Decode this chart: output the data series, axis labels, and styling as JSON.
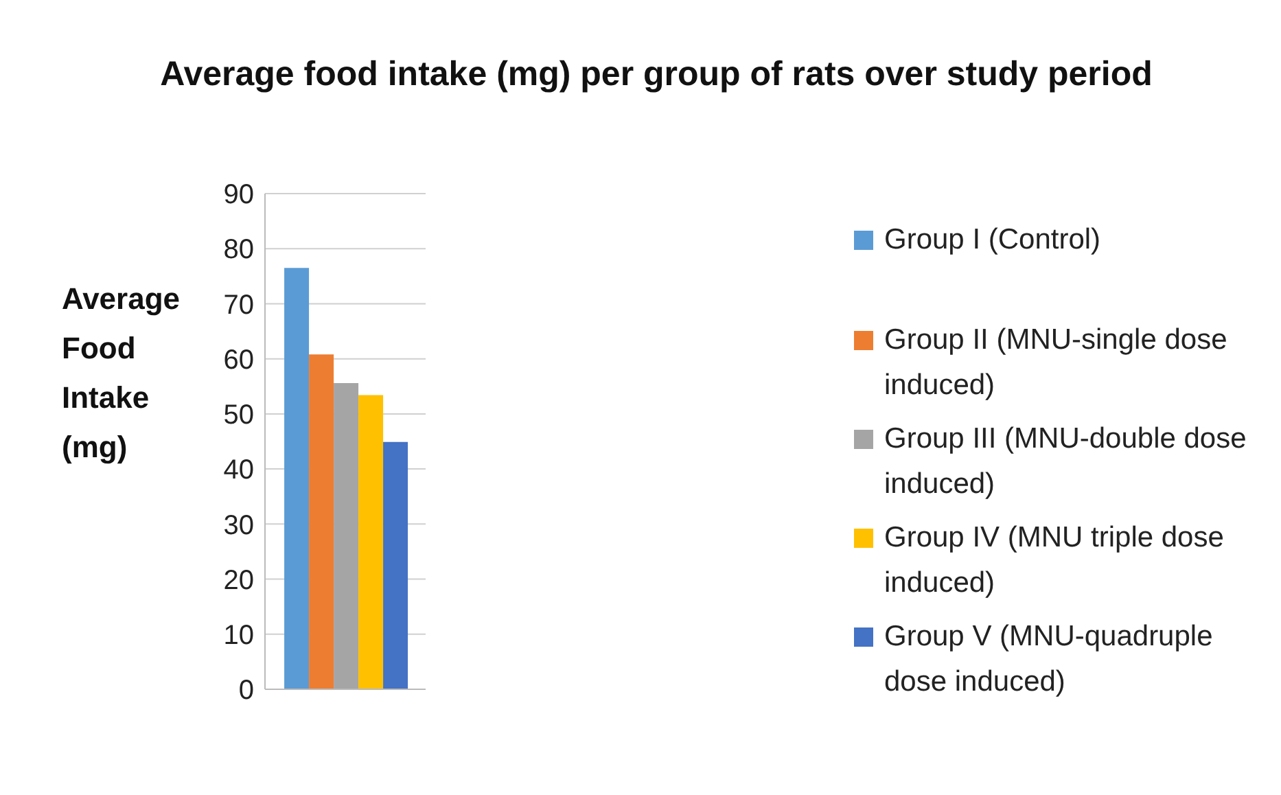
{
  "chart_data": {
    "type": "bar",
    "title": "Average food intake (mg) per group of rats over study period",
    "ylabel": "Average Food Intake (mg)",
    "categories": [
      null
    ],
    "series": [
      {
        "name": "Group I (Control)",
        "color": "#5b9bd5",
        "values": [
          76.5
        ]
      },
      {
        "name": "Group II (MNU-single dose induced)",
        "color": "#ed7d31",
        "values": [
          60.8
        ]
      },
      {
        "name": "Group III (MNU-double dose induced)",
        "color": "#a5a5a5",
        "values": [
          55.6
        ]
      },
      {
        "name": "Group IV (MNU triple dose induced)",
        "color": "#ffc000",
        "values": [
          53.4
        ]
      },
      {
        "name": "Group V (MNU-quadruple dose induced)",
        "color": "#4472c4",
        "values": [
          44.9
        ]
      }
    ],
    "ylim": [
      0,
      90
    ],
    "yticks": [
      0,
      10,
      20,
      30,
      40,
      50,
      60,
      70,
      80,
      90
    ],
    "grid": "y",
    "legend": "right"
  }
}
